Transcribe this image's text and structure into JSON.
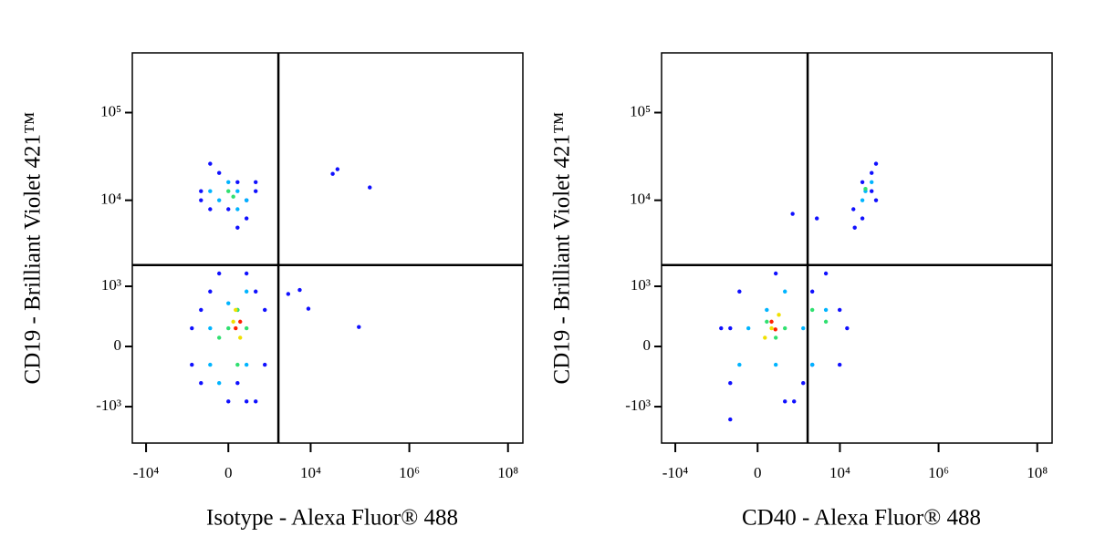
{
  "chart_data": [
    {
      "type": "scatter",
      "xlabel": "Isotype - Alexa Fluor® 488",
      "ylabel": "CD19 - Brilliant Violet 421™",
      "xscale": "asinh",
      "yscale": "asinh",
      "xlim": [
        -19000,
        200000000
      ],
      "ylim": [
        -2700,
        480000
      ],
      "xticks": [
        {
          "value": -10000,
          "label": "-10⁴"
        },
        0,
        {
          "value": 10000,
          "label": "10⁴"
        },
        {
          "value": 1000000,
          "label": "10⁶"
        },
        {
          "value": 100000000,
          "label": "10⁸"
        }
      ],
      "yticks": [
        {
          "value": 100000,
          "label": "10⁵"
        },
        {
          "value": 10000,
          "label": "10⁴"
        },
        {
          "value": 1000,
          "label": "10³"
        },
        0,
        {
          "value": -1000,
          "label": "-10³"
        }
      ],
      "gates": {
        "x": 2200,
        "y": 1800
      },
      "series": [
        {
          "color": "#1010ff",
          "x": [
            -410,
            410,
            -710,
            710,
            -190,
            190,
            -410,
            410,
            0,
            -710,
            710,
            190,
            -1140,
            1140,
            -710,
            710,
            -410,
            410,
            0,
            -190,
            1140,
            -1140,
            710,
            -710,
            190,
            410,
            3500,
            6000,
            9000,
            35000,
            95000,
            158000,
            28000
          ],
          "y": [
            7900,
            6200,
            12700,
            16100,
            20500,
            4860,
            26100,
            10000,
            7900,
            10000,
            12700,
            16100,
            214,
            480,
            -480,
            -860,
            860,
            1430,
            -860,
            1430,
            -214,
            -214,
            860,
            480,
            -480,
            -860,
            800,
            900,
            500,
            22600,
            230,
            14000,
            20000
          ]
        },
        {
          "color": "#00b4ff",
          "x": [
            -190,
            190,
            0,
            -410,
            410,
            190,
            -410,
            410,
            190,
            -190,
            410,
            -410,
            0
          ],
          "y": [
            10000,
            12700,
            16100,
            12700,
            10000,
            7900,
            214,
            -214,
            480,
            -480,
            860,
            -214,
            600
          ]
        },
        {
          "color": "#30e070",
          "x": [
            0,
            100,
            0,
            190,
            410,
            190,
            -190
          ],
          "y": [
            12700,
            11000,
            214,
            -214,
            214,
            480,
            100
          ]
        },
        {
          "color": "#f0e000",
          "x": [
            100,
            250,
            150
          ],
          "y": [
            300,
            100,
            480
          ]
        },
        {
          "color": "#ff2000",
          "x": [
            150,
            250
          ],
          "y": [
            214,
            300
          ]
        }
      ]
    },
    {
      "type": "scatter",
      "xlabel": "CD40 - Alexa Fluor® 488",
      "ylabel": "CD19 - Brilliant Violet 421™",
      "xscale": "asinh",
      "yscale": "asinh",
      "xlim": [
        -19000,
        200000000
      ],
      "ylim": [
        -2700,
        480000
      ],
      "xticks": [
        {
          "value": -10000,
          "label": "-10⁴"
        },
        0,
        {
          "value": 10000,
          "label": "10⁴"
        },
        {
          "value": 1000000,
          "label": "10⁶"
        },
        {
          "value": 100000000,
          "label": "10⁸"
        }
      ],
      "yticks": [
        {
          "value": 100000,
          "label": "10⁵"
        },
        {
          "value": 10000,
          "label": "10⁴"
        },
        {
          "value": 1000,
          "label": "10³"
        },
        0,
        {
          "value": -1000,
          "label": "-10³"
        }
      ],
      "gates": {
        "x": 2200,
        "y": 1800
      },
      "series": [
        {
          "color": "#1010ff",
          "x": [
            -1140,
            -710,
            710,
            1780,
            2740,
            9900,
            9900,
            -410,
            410,
            5200,
            2740,
            -710,
            1140,
            14000,
            18800,
            54000,
            28600,
            44000,
            28600,
            44000,
            20000,
            54000,
            -710,
            3400,
            1060
          ],
          "y": [
            214,
            -480,
            -860,
            -480,
            -214,
            480,
            -214,
            860,
            1430,
            1430,
            860,
            214,
            -860,
            214,
            7900,
            10000,
            16100,
            20500,
            6200,
            12700,
            4860,
            26100,
            -1430,
            6200,
            7000
          ]
        },
        {
          "color": "#00b4ff",
          "x": [
            -190,
            410,
            1780,
            5200,
            2740,
            190,
            710,
            -410,
            33000,
            28600,
            44000
          ],
          "y": [
            214,
            -214,
            214,
            480,
            -214,
            480,
            860,
            -214,
            12700,
            10000,
            16100
          ]
        },
        {
          "color": "#30e070",
          "x": [
            190,
            410,
            5200,
            2740,
            710,
            33000
          ],
          "y": [
            300,
            100,
            300,
            480,
            214,
            13500
          ]
        },
        {
          "color": "#f0e000",
          "x": [
            300,
            500,
            150
          ],
          "y": [
            214,
            400,
            100
          ]
        },
        {
          "color": "#ff2000",
          "x": [
            300,
            400
          ],
          "y": [
            300,
            200
          ]
        }
      ]
    }
  ]
}
